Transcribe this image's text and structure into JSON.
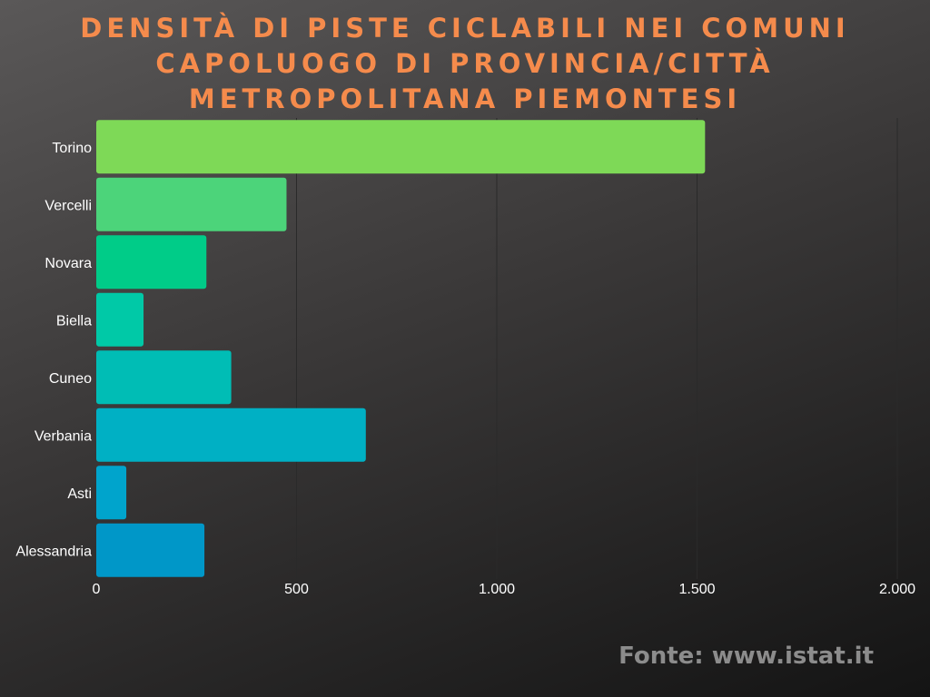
{
  "title_lines": [
    "Densità di piste ciclabili nei comuni",
    "capoluogo di provincia/città",
    "metropolitana piemontesi"
  ],
  "source": "Fonte: www.istat.it",
  "chart_data": {
    "type": "bar",
    "orientation": "horizontal",
    "title": "Densità di piste ciclabili nei comuni capoluogo di provincia/città metropolitana piemontesi",
    "categories": [
      "Torino",
      "Vercelli",
      "Novara",
      "Biella",
      "Cuneo",
      "Verbania",
      "Asti",
      "Alessandria"
    ],
    "values": [
      1520,
      475,
      275,
      118,
      337,
      673,
      75,
      270
    ],
    "colors": [
      "#7ed957",
      "#4cd47a",
      "#00cc88",
      "#00c9a7",
      "#00bdb5",
      "#00b0c4",
      "#00a4cc",
      "#0097c8"
    ],
    "xlim": [
      0,
      2000
    ],
    "xticks": [
      0,
      500,
      1000,
      1500,
      2000
    ],
    "xtick_labels": [
      "0",
      "500",
      "1.000",
      "1.500",
      "2.000"
    ],
    "grid": true,
    "xlabel": "",
    "ylabel": ""
  }
}
